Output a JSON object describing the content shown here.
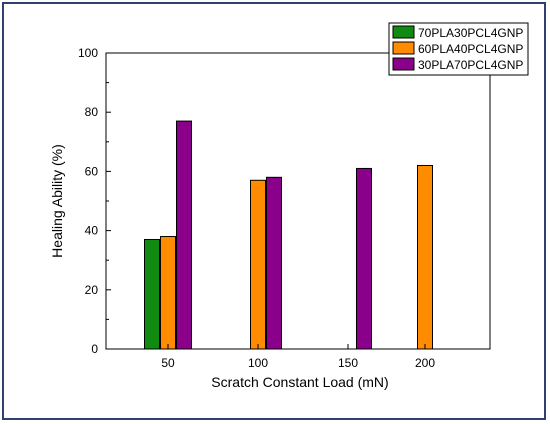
{
  "chart_data": {
    "type": "bar",
    "categories": [
      "50",
      "100",
      "150",
      "200"
    ],
    "series": [
      {
        "name": "70PLA30PCL4GNP",
        "color": "#118a11",
        "values": [
          37,
          null,
          null,
          null
        ]
      },
      {
        "name": "60PLA40PCL4GNP",
        "color": "#ff8c00",
        "values": [
          38,
          57,
          null,
          62
        ]
      },
      {
        "name": "30PLA70PCL4GNP",
        "color": "#8b008b",
        "values": [
          77,
          58,
          61,
          null
        ]
      }
    ],
    "xlabel": "Scratch Constant Load (mN)",
    "ylabel": "Healing Ability (%)",
    "ylim": [
      0,
      100
    ],
    "yticks": [
      0,
      20,
      40,
      60,
      80,
      100
    ],
    "grid": false,
    "legend_position": "top-right"
  }
}
